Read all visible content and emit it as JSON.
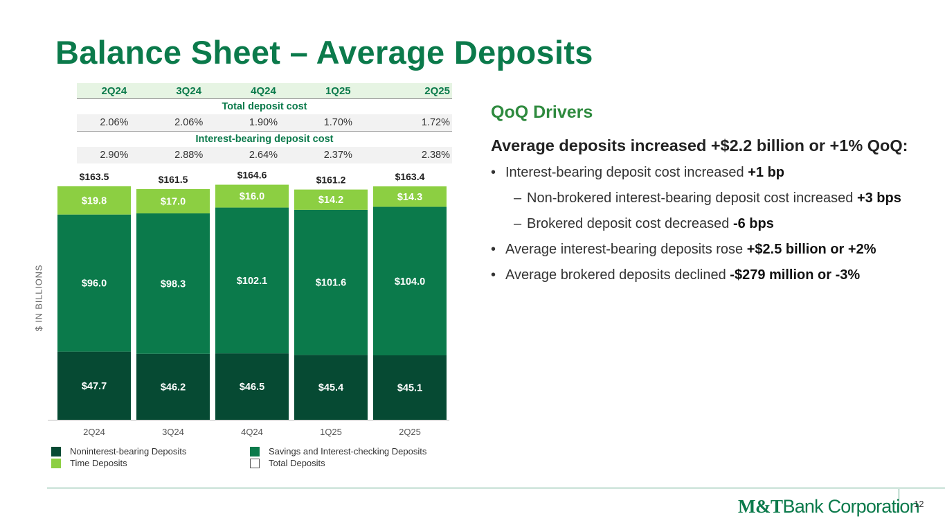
{
  "title": "Balance Sheet – Average Deposits",
  "cost_table": {
    "quarters": [
      "2Q24",
      "3Q24",
      "4Q24",
      "1Q25",
      "2Q25"
    ],
    "total_label": "Total deposit cost",
    "total_values": [
      "2.06%",
      "2.06%",
      "1.90%",
      "1.70%",
      "1.72%"
    ],
    "ib_label": "Interest-bearing deposit cost",
    "ib_values": [
      "2.90%",
      "2.88%",
      "2.64%",
      "2.37%",
      "2.38%"
    ]
  },
  "chart_data": {
    "type": "bar",
    "stacked": true,
    "ylabel": "$ IN BILLIONS",
    "categories": [
      "2Q24",
      "3Q24",
      "4Q24",
      "1Q25",
      "2Q25"
    ],
    "series": [
      {
        "name": "Noninterest-bearing Deposits",
        "values": [
          47.7,
          46.2,
          46.5,
          45.4,
          45.1
        ],
        "labels": [
          "$47.7",
          "$46.2",
          "$46.5",
          "$45.4",
          "$45.1"
        ],
        "color": "#064a33"
      },
      {
        "name": "Savings and Interest-checking Deposits",
        "values": [
          96.0,
          98.3,
          102.1,
          101.6,
          104.0
        ],
        "labels": [
          "$96.0",
          "$98.3",
          "$102.1",
          "$101.6",
          "$104.0"
        ],
        "color": "#0b7a4b"
      },
      {
        "name": "Time Deposits",
        "values": [
          19.8,
          17.0,
          16.0,
          14.2,
          14.3
        ],
        "labels": [
          "$19.8",
          "$17.0",
          "$16.0",
          "$14.2",
          "$14.3"
        ],
        "color": "#8ccf42"
      }
    ],
    "totals": [
      163.5,
      161.5,
      164.6,
      161.2,
      163.4
    ],
    "total_labels": [
      "$163.5",
      "$161.5",
      "$164.6",
      "$161.2",
      "$163.4"
    ],
    "totals_series_name": "Total Deposits",
    "legend": [
      "Noninterest-bearing Deposits",
      "Savings and Interest-checking Deposits",
      "Time Deposits",
      "Total Deposits"
    ]
  },
  "drivers": {
    "heading": "QoQ Drivers",
    "lead": "Average deposits increased +$2.2 billion or +1% QoQ:",
    "b1_text": "Interest-bearing deposit cost increased ",
    "b1_bold": "+1 bp",
    "b1a_text": "Non-brokered interest-bearing deposit cost increased ",
    "b1a_bold": "+3 bps",
    "b1b_text": "Brokered deposit cost decreased ",
    "b1b_bold": "-6 bps",
    "b2_text": "Average interest-bearing deposits rose ",
    "b2_bold": "+$2.5 billion or +2%",
    "b3_text": "Average brokered deposits declined ",
    "b3_bold": "-$279 million or -3%",
    "dash": "–"
  },
  "footer": {
    "logo_mt": "M&T",
    "logo_rest": "Bank Corporation",
    "page": "12"
  },
  "colors": {
    "brand_green": "#0b7a4b",
    "dark_green": "#064a33",
    "light_green": "#8ccf42"
  }
}
